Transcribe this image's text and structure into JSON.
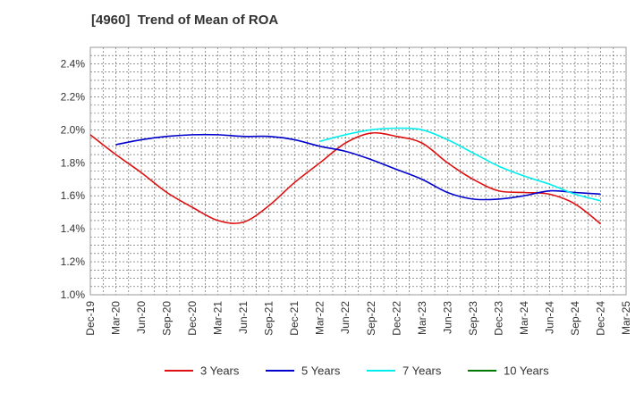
{
  "chart_data": {
    "type": "line",
    "title": "[4960]  Trend of Mean of ROA",
    "xlabel": "",
    "ylabel": "",
    "ylim": [
      1.0,
      2.5
    ],
    "yticks": [
      1.0,
      1.2,
      1.4,
      1.6,
      1.8,
      2.0,
      2.2,
      2.4
    ],
    "ytick_labels": [
      "1.0%",
      "1.2%",
      "1.4%",
      "1.6%",
      "1.8%",
      "2.0%",
      "2.2%",
      "2.4%"
    ],
    "x_categories": [
      "Dec-19",
      "Mar-20",
      "Jun-20",
      "Sep-20",
      "Dec-20",
      "Mar-21",
      "Jun-21",
      "Sep-21",
      "Dec-21",
      "Mar-22",
      "Jun-22",
      "Sep-22",
      "Dec-22",
      "Mar-23",
      "Jun-23",
      "Sep-23",
      "Dec-23",
      "Mar-24",
      "Jun-24",
      "Sep-24",
      "Dec-24",
      "Mar-25"
    ],
    "grid": true,
    "legend_position": "bottom",
    "series": [
      {
        "name": "3 Years",
        "color": "#dd1111",
        "values": [
          1.97,
          1.85,
          1.74,
          1.62,
          1.53,
          1.45,
          1.44,
          1.54,
          1.68,
          1.8,
          1.92,
          1.98,
          1.96,
          1.92,
          1.8,
          1.7,
          1.63,
          1.62,
          1.61,
          1.55,
          1.43,
          null
        ]
      },
      {
        "name": "5 Years",
        "color": "#0000cc",
        "values": [
          null,
          1.91,
          1.94,
          1.96,
          1.97,
          1.97,
          1.96,
          1.96,
          1.94,
          1.9,
          1.87,
          1.82,
          1.76,
          1.7,
          1.62,
          1.58,
          1.58,
          1.6,
          1.63,
          1.62,
          1.61,
          null
        ]
      },
      {
        "name": "7 Years",
        "color": "#00eeee",
        "values": [
          null,
          null,
          null,
          null,
          null,
          null,
          null,
          null,
          null,
          1.93,
          1.97,
          2.0,
          2.01,
          2.0,
          1.94,
          1.86,
          1.78,
          1.72,
          1.67,
          1.61,
          1.57,
          null
        ]
      },
      {
        "name": "10 Years",
        "color": "#007700",
        "values": [
          null,
          null,
          null,
          null,
          null,
          null,
          null,
          null,
          null,
          null,
          null,
          null,
          null,
          null,
          null,
          null,
          null,
          null,
          null,
          null,
          null,
          null
        ]
      }
    ]
  }
}
